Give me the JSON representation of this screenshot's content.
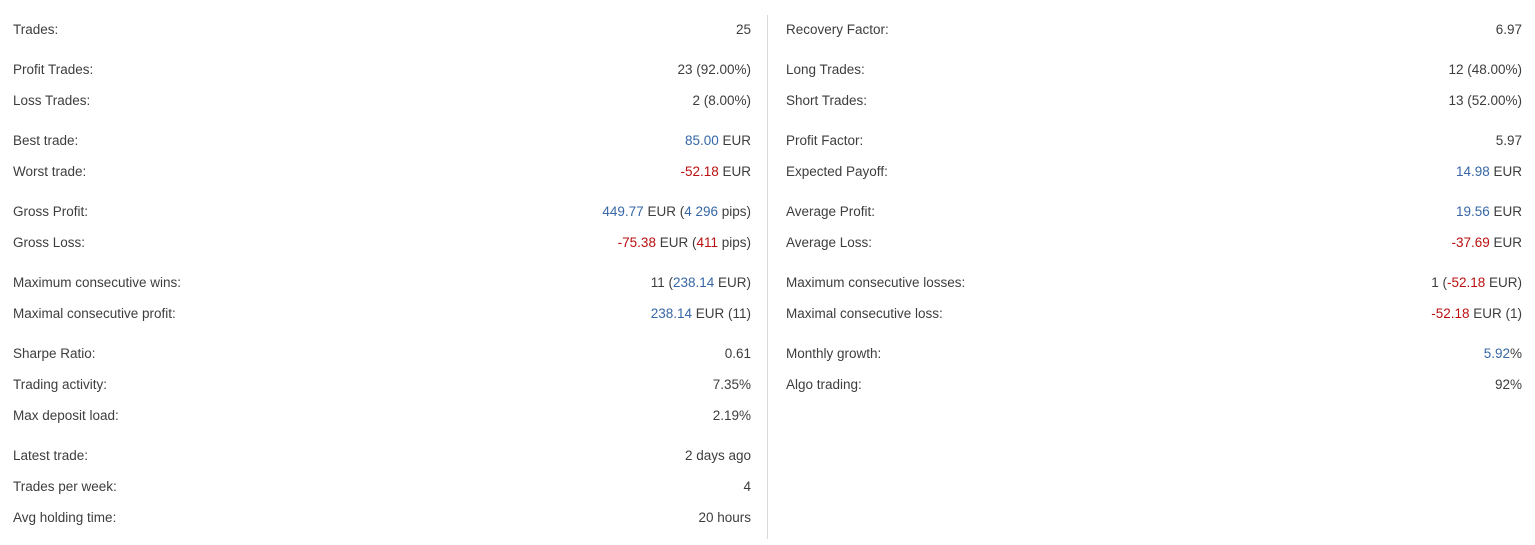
{
  "colors": {
    "text": "#3d3d3d",
    "positive": "#3767a6",
    "negative": "#bb0f0f",
    "divider": "#d9d9d9",
    "background": "#ffffff"
  },
  "left_column": {
    "groups": [
      {
        "rows": [
          {
            "id": "trades",
            "label": "Trades:",
            "value": [
              {
                "text": "25",
                "tone": "default"
              }
            ]
          }
        ]
      },
      {
        "rows": [
          {
            "id": "profit-trades",
            "label": "Profit Trades:",
            "value": [
              {
                "text": "23 (92.00%)",
                "tone": "default"
              }
            ]
          },
          {
            "id": "loss-trades",
            "label": "Loss Trades:",
            "value": [
              {
                "text": "2 (8.00%)",
                "tone": "default"
              }
            ]
          }
        ]
      },
      {
        "rows": [
          {
            "id": "best-trade",
            "label": "Best trade:",
            "value": [
              {
                "text": "85.00",
                "tone": "positive"
              },
              {
                "text": " EUR",
                "tone": "default"
              }
            ]
          },
          {
            "id": "worst-trade",
            "label": "Worst trade:",
            "value": [
              {
                "text": "-52.18",
                "tone": "negative"
              },
              {
                "text": " EUR",
                "tone": "default"
              }
            ]
          }
        ]
      },
      {
        "rows": [
          {
            "id": "gross-profit",
            "label": "Gross Profit:",
            "value": [
              {
                "text": "449.77",
                "tone": "positive"
              },
              {
                "text": " EUR (",
                "tone": "default"
              },
              {
                "text": "4 296",
                "tone": "positive"
              },
              {
                "text": " pips)",
                "tone": "default"
              }
            ]
          },
          {
            "id": "gross-loss",
            "label": "Gross Loss:",
            "value": [
              {
                "text": "-75.38",
                "tone": "negative"
              },
              {
                "text": " EUR (",
                "tone": "default"
              },
              {
                "text": "411",
                "tone": "negative"
              },
              {
                "text": " pips)",
                "tone": "default"
              }
            ]
          }
        ]
      },
      {
        "rows": [
          {
            "id": "maximum-consecutive-wins",
            "label": "Maximum consecutive wins:",
            "value": [
              {
                "text": "11 (",
                "tone": "default"
              },
              {
                "text": "238.14",
                "tone": "positive"
              },
              {
                "text": " EUR)",
                "tone": "default"
              }
            ]
          },
          {
            "id": "maximal-consecutive-profit",
            "label": "Maximal consecutive profit:",
            "value": [
              {
                "text": "238.14",
                "tone": "positive"
              },
              {
                "text": " EUR (11)",
                "tone": "default"
              }
            ]
          }
        ]
      },
      {
        "rows": [
          {
            "id": "sharpe-ratio",
            "label": "Sharpe Ratio:",
            "value": [
              {
                "text": "0.61",
                "tone": "default"
              }
            ]
          },
          {
            "id": "trading-activity",
            "label": "Trading activity:",
            "value": [
              {
                "text": "7.35%",
                "tone": "default"
              }
            ]
          },
          {
            "id": "max-deposit-load",
            "label": "Max deposit load:",
            "value": [
              {
                "text": "2.19%",
                "tone": "default"
              }
            ]
          }
        ]
      },
      {
        "rows": [
          {
            "id": "latest-trade",
            "label": "Latest trade:",
            "value": [
              {
                "text": "2 days ago",
                "tone": "default"
              }
            ]
          },
          {
            "id": "trades-per-week",
            "label": "Trades per week:",
            "value": [
              {
                "text": "4",
                "tone": "default"
              }
            ]
          },
          {
            "id": "avg-holding-time",
            "label": "Avg holding time:",
            "value": [
              {
                "text": "20 hours",
                "tone": "default"
              }
            ]
          }
        ]
      }
    ]
  },
  "right_column": {
    "groups": [
      {
        "rows": [
          {
            "id": "recovery-factor",
            "label": "Recovery Factor:",
            "value": [
              {
                "text": "6.97",
                "tone": "default"
              }
            ]
          }
        ]
      },
      {
        "rows": [
          {
            "id": "long-trades",
            "label": "Long Trades:",
            "value": [
              {
                "text": "12 (48.00%)",
                "tone": "default"
              }
            ]
          },
          {
            "id": "short-trades",
            "label": "Short Trades:",
            "value": [
              {
                "text": "13 (52.00%)",
                "tone": "default"
              }
            ]
          }
        ]
      },
      {
        "rows": [
          {
            "id": "profit-factor",
            "label": "Profit Factor:",
            "value": [
              {
                "text": "5.97",
                "tone": "default"
              }
            ]
          },
          {
            "id": "expected-payoff",
            "label": "Expected Payoff:",
            "value": [
              {
                "text": "14.98",
                "tone": "positive"
              },
              {
                "text": " EUR",
                "tone": "default"
              }
            ]
          }
        ]
      },
      {
        "rows": [
          {
            "id": "average-profit",
            "label": "Average Profit:",
            "value": [
              {
                "text": "19.56",
                "tone": "positive"
              },
              {
                "text": " EUR",
                "tone": "default"
              }
            ]
          },
          {
            "id": "average-loss",
            "label": "Average Loss:",
            "value": [
              {
                "text": "-37.69",
                "tone": "negative"
              },
              {
                "text": " EUR",
                "tone": "default"
              }
            ]
          }
        ]
      },
      {
        "rows": [
          {
            "id": "maximum-consecutive-losses",
            "label": "Maximum consecutive losses:",
            "value": [
              {
                "text": "1 (",
                "tone": "default"
              },
              {
                "text": "-52.18",
                "tone": "negative"
              },
              {
                "text": " EUR)",
                "tone": "default"
              }
            ]
          },
          {
            "id": "maximal-consecutive-loss",
            "label": "Maximal consecutive loss:",
            "value": [
              {
                "text": "-52.18",
                "tone": "negative"
              },
              {
                "text": " EUR (1)",
                "tone": "default"
              }
            ]
          }
        ]
      },
      {
        "rows": [
          {
            "id": "monthly-growth",
            "label": "Monthly growth:",
            "value": [
              {
                "text": "5.92",
                "tone": "positive"
              },
              {
                "text": "%",
                "tone": "default"
              }
            ]
          },
          {
            "id": "algo-trading",
            "label": "Algo trading:",
            "value": [
              {
                "text": "92%",
                "tone": "default"
              }
            ]
          }
        ]
      }
    ]
  }
}
